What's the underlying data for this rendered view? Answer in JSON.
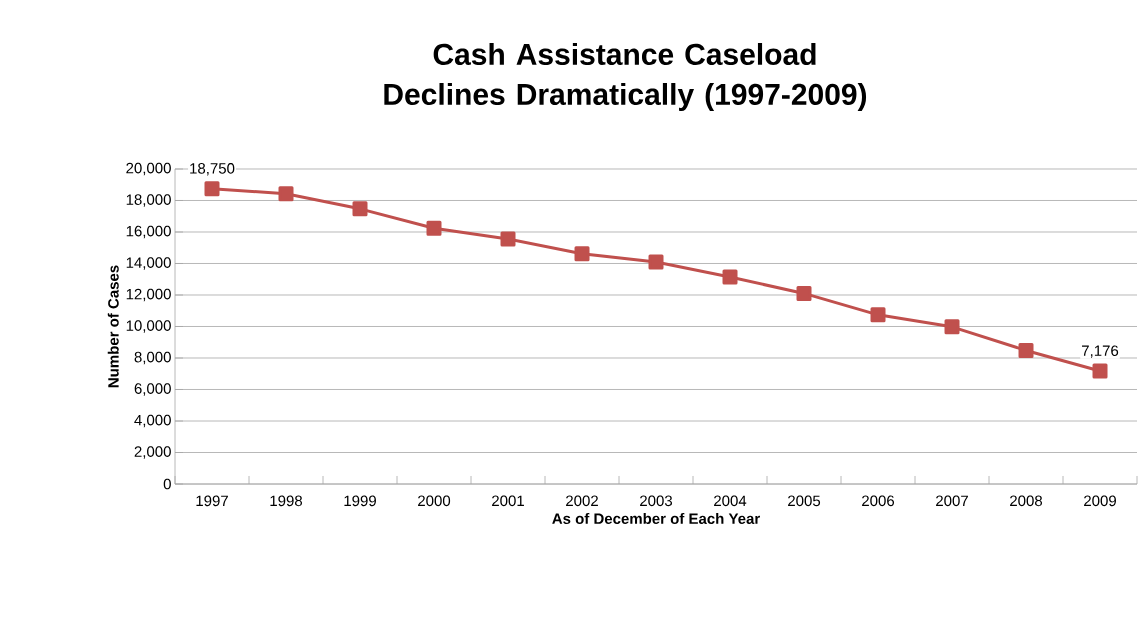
{
  "chart_data": {
    "type": "line",
    "title": "Cash Assistance Caseload Declines Dramatically (1997-2009)",
    "xlabel": "As of December of Each Year",
    "ylabel": "Number of Cases",
    "categories": [
      "1997",
      "1998",
      "1999",
      "2000",
      "2001",
      "2002",
      "2003",
      "2004",
      "2005",
      "2006",
      "2007",
      "2008",
      "2009"
    ],
    "values": [
      18750,
      18430,
      17470,
      16240,
      15560,
      14620,
      14100,
      13140,
      12100,
      10740,
      9980,
      8480,
      7176
    ],
    "value_labels": [
      "18,750",
      null,
      null,
      null,
      null,
      null,
      null,
      null,
      null,
      null,
      null,
      null,
      "7,176"
    ],
    "color": "#c0504d",
    "marker": "square",
    "line_style": "solid",
    "grid": "y",
    "ylim": [
      0,
      20000
    ],
    "yticks": [
      {
        "value": 0,
        "label": "0"
      },
      {
        "value": 2000,
        "label": "2,000"
      },
      {
        "value": 4000,
        "label": "4,000"
      },
      {
        "value": 6000,
        "label": "6,000"
      },
      {
        "value": 8000,
        "label": "8,000"
      },
      {
        "value": 10000,
        "label": "10,000"
      },
      {
        "value": 12000,
        "label": "12,000"
      },
      {
        "value": 14000,
        "label": "14,000"
      },
      {
        "value": 16000,
        "label": "16,000"
      },
      {
        "value": 18000,
        "label": "18,000"
      },
      {
        "value": 20000,
        "label": "20,000"
      }
    ]
  }
}
